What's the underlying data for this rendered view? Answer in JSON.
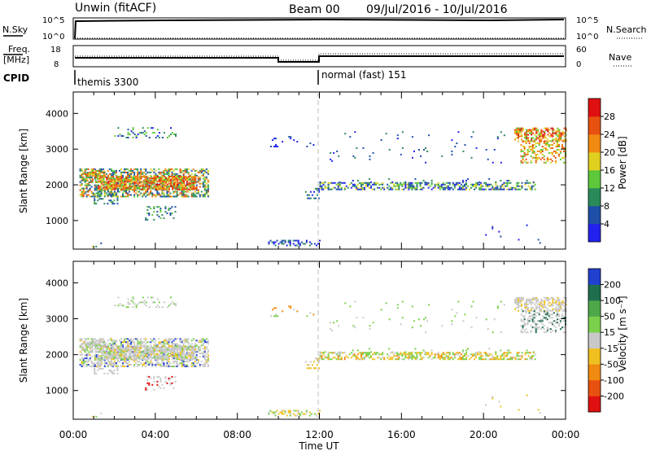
{
  "header": {
    "station": "Unwin (fitACF)",
    "beam": "Beam 00",
    "dates": "09/Jul/2016 - 10/Jul/2016"
  },
  "panel_labels": {
    "nsky": "N.Sky",
    "freq": "Freq.",
    "freq_unit": "[MHz]",
    "cpid": "CPID",
    "nsearch": "N.Search",
    "nave": "Nave"
  },
  "top_axes": {
    "noise_left_ticks": [
      "10^5",
      "10^0"
    ],
    "noise_right_ticks": [
      "10^5",
      "10^0"
    ],
    "freq_left_ticks": [
      "18",
      "8"
    ],
    "nave_right_ticks": [
      "60",
      "0"
    ]
  },
  "cpid_labels": [
    "themis 3300",
    "normal (fast) 151"
  ],
  "x_axis": {
    "label": "Time UT",
    "ticks": [
      "00:00",
      "04:00",
      "08:00",
      "12:00",
      "16:00",
      "20:00",
      "00:00"
    ]
  },
  "colors": {
    "power": [
      "#2222ee",
      "#1f4fa8",
      "#2a8a5a",
      "#5cc83a",
      "#e0d020",
      "#f08a10",
      "#e85010",
      "#e01010"
    ],
    "velocity": [
      "#2040d0",
      "#1f6e4e",
      "#4ea84a",
      "#7ad04a",
      "#c8c8c8",
      "#f0c020",
      "#f08a10",
      "#e85010",
      "#e01010"
    ]
  },
  "chart_data": [
    {
      "type": "heatmap",
      "quantity": "power",
      "xlabel": "",
      "ylabel": "Slant Range [km]",
      "x_range_hours": [
        0,
        24
      ],
      "y_range_km": [
        200,
        4600
      ],
      "y_ticks": [
        "1000",
        "2000",
        "3000",
        "4000"
      ],
      "colorbar_label": "Power [dB]",
      "colorbar_ticks": [
        "4",
        "8",
        "12",
        "16",
        "20",
        "24",
        "28"
      ],
      "regions": [
        {
          "t_start": 0.3,
          "t_end": 6.6,
          "r_low": 1600,
          "r_high": 2500,
          "level": "low-high (8-30 dB)"
        },
        {
          "t_start": 1.0,
          "t_end": 6.0,
          "r_low": 1800,
          "r_high": 2300,
          "level": "strong (20-30 dB)"
        },
        {
          "t_start": 2.0,
          "t_end": 5.0,
          "r_low": 3300,
          "r_high": 3600,
          "level": "weak (4-16 dB)"
        },
        {
          "t_start": 3.5,
          "t_end": 5.0,
          "r_low": 1000,
          "r_high": 1400,
          "level": "weak (4-12 dB)"
        },
        {
          "t_start": 9.5,
          "t_end": 12.0,
          "r_low": 300,
          "r_high": 450,
          "level": "weak (4-12 dB)"
        },
        {
          "t_start": 12.0,
          "t_end": 22.5,
          "r_low": 1850,
          "r_high": 2050,
          "level": "weak-moderate (4-14 dB)"
        },
        {
          "t_start": 21.5,
          "t_end": 24.0,
          "r_low": 2600,
          "r_high": 3600,
          "level": "moderate-strong (12-28 dB)"
        }
      ]
    },
    {
      "type": "heatmap",
      "quantity": "velocity",
      "xlabel": "Time UT",
      "ylabel": "Slant Range [km]",
      "x_range_hours": [
        0,
        24
      ],
      "y_range_km": [
        200,
        4600
      ],
      "y_ticks": [
        "1000",
        "2000",
        "3000",
        "4000"
      ],
      "colorbar_label": "Velocity [m s⁻¹]",
      "colorbar_ticks": [
        "200",
        "100",
        "50",
        "15",
        "-15",
        "-50",
        "-100",
        "-200"
      ],
      "regions": [
        {
          "t_start": 0.3,
          "t_end": 6.6,
          "r_low": 1600,
          "r_high": 2500,
          "level": "near zero (-15 to 15)"
        },
        {
          "t_start": 12.0,
          "t_end": 22.5,
          "r_low": 1850,
          "r_high": 2050,
          "level": "-50 to 50"
        },
        {
          "t_start": 21.5,
          "t_end": 24.0,
          "r_low": 2600,
          "r_high": 3600,
          "level": "near zero (-15 to 15)"
        }
      ]
    }
  ]
}
